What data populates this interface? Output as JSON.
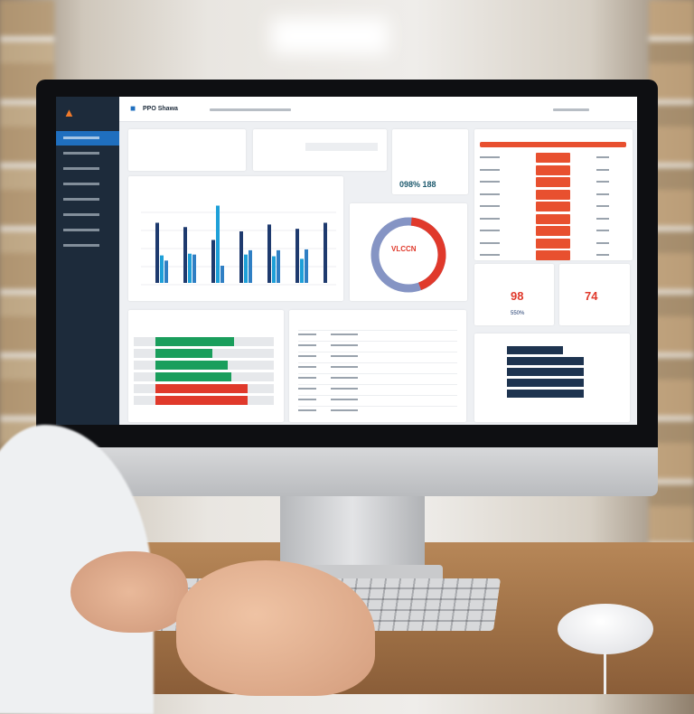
{
  "app": {
    "title": "PPO Shawa",
    "accent": "#1f6fbf",
    "sidebar_bg": "#1d2b3b"
  },
  "kpis": {
    "metric_a": "098% 188",
    "metric_b": "98",
    "metric_b_sub": "550%",
    "metric_c": "74"
  },
  "donut": {
    "center_label": "VLCCN",
    "colors": {
      "primary": "#e0392b",
      "secondary": "#8594c4"
    }
  },
  "chart_data": {
    "type": "bar",
    "series": [
      {
        "values": [
          7,
          6.5,
          5,
          6,
          6.8,
          6.3,
          7
        ]
      },
      {
        "values": [
          3.2,
          3.4,
          9,
          3.3,
          3.1,
          2.8,
          0
        ]
      },
      {
        "values": [
          2.6,
          3.3,
          2,
          3.8,
          3.8,
          3.9,
          0
        ]
      }
    ],
    "colors": [
      "#1e3a6e",
      "#1ea0d8",
      "#2f7fc4"
    ]
  },
  "progress_bars": {
    "values": [
      85,
      62,
      78,
      82,
      100,
      100
    ],
    "colors": [
      "#1a9e5c",
      "#1a9e5c",
      "#1a9e5c",
      "#1a9e5c",
      "#e0392b",
      "#e0392b"
    ]
  },
  "navy_bars": {
    "values": [
      62,
      85,
      85,
      85,
      85
    ]
  },
  "icons": [
    "logo-icon",
    "chart-icon",
    "refresh-icon"
  ]
}
